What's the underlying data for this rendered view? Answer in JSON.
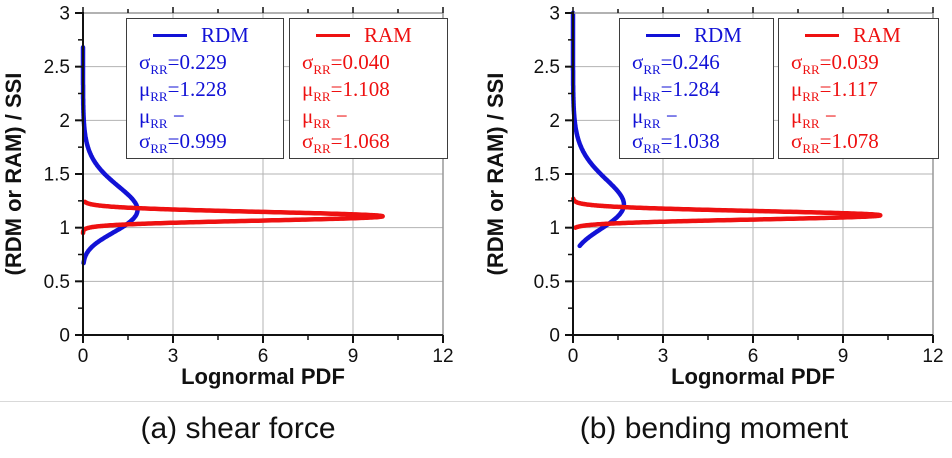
{
  "chart_data": [
    {
      "type": "line",
      "caption": "(a) shear force",
      "xlabel": "Lognormal PDF",
      "ylabel": "(RDM or RAM) / SSI",
      "xlim": [
        0,
        12
      ],
      "ylim": [
        0,
        3
      ],
      "grid": true,
      "legend_position": "top-inside",
      "xticks": {
        "major": [
          0,
          3,
          6,
          9,
          12
        ],
        "minor": [
          1.5,
          4.5,
          7.5,
          10.5
        ],
        "labels": [
          "0",
          "3",
          "6",
          "9",
          "12"
        ]
      },
      "yticks": {
        "major": [
          0,
          0.5,
          1,
          1.5,
          2,
          2.5,
          3
        ],
        "minor": [
          0.25,
          0.75,
          1.25,
          1.75,
          2.25,
          2.75
        ],
        "labels": [
          "0",
          "0.5",
          "1",
          "1.5",
          "2",
          "2.5",
          "3"
        ]
      },
      "series": [
        {
          "name": "RDM",
          "color": "#1212d6",
          "curve": "lognormal_pdf",
          "orientation": "pdf_value_on_x_axis",
          "mean_RR": 1.228,
          "std_RR": 0.229,
          "mean_minus_std_RR": 0.999,
          "peak_pdf_approx": 1.85,
          "y_range_plotted": [
            0.67,
            2.68
          ],
          "legend_stats": [
            [
              {
                "t": "σ"
              },
              {
                "t": "RR",
                "sub": true
              },
              {
                "t": "=0.229"
              }
            ],
            [
              {
                "t": "μ"
              },
              {
                "t": "RR",
                "sub": true
              },
              {
                "t": "=1.228"
              }
            ],
            [
              {
                "t": "μ"
              },
              {
                "t": "RR",
                "sub": true
              },
              {
                "t": " − σ"
              },
              {
                "t": "RR",
                "sub": true
              },
              {
                "t": "=0.999"
              }
            ]
          ]
        },
        {
          "name": "RAM",
          "color": "#ee1111",
          "curve": "lognormal_pdf",
          "orientation": "pdf_value_on_x_axis",
          "mean_RR": 1.108,
          "std_RR": 0.04,
          "mean_minus_std_RR": 1.068,
          "peak_pdf_approx": 10.0,
          "y_range_plotted": [
            0.95,
            1.24
          ],
          "legend_stats": [
            [
              {
                "t": "σ"
              },
              {
                "t": "RR",
                "sub": true
              },
              {
                "t": "=0.040"
              }
            ],
            [
              {
                "t": "μ"
              },
              {
                "t": "RR",
                "sub": true
              },
              {
                "t": "=1.108"
              }
            ],
            [
              {
                "t": "μ"
              },
              {
                "t": "RR",
                "sub": true
              },
              {
                "t": " − σ"
              },
              {
                "t": "RR",
                "sub": true
              },
              {
                "t": "=1.068"
              }
            ]
          ]
        }
      ]
    },
    {
      "type": "line",
      "caption": "(b) bending moment",
      "xlabel": "Lognormal PDF",
      "ylabel": "(RDM or RAM) / SSI",
      "xlim": [
        0,
        12
      ],
      "ylim": [
        0,
        3
      ],
      "grid": true,
      "legend_position": "top-inside",
      "xticks": {
        "major": [
          0,
          3,
          6,
          9,
          12
        ],
        "minor": [
          1.5,
          4.5,
          7.5,
          10.5
        ],
        "labels": [
          "0",
          "3",
          "6",
          "9",
          "12"
        ]
      },
      "yticks": {
        "major": [
          0,
          0.5,
          1,
          1.5,
          2,
          2.5,
          3
        ],
        "minor": [
          0.25,
          0.75,
          1.25,
          1.75,
          2.25,
          2.75
        ],
        "labels": [
          "0",
          "0.5",
          "1",
          "1.5",
          "2",
          "2.5",
          "3"
        ]
      },
      "series": [
        {
          "name": "RDM",
          "color": "#1212d6",
          "curve": "lognormal_pdf",
          "orientation": "pdf_value_on_x_axis",
          "mean_RR": 1.284,
          "std_RR": 0.246,
          "mean_minus_std_RR": 1.038,
          "peak_pdf_approx": 1.73,
          "y_range_plotted": [
            0.83,
            3.0
          ],
          "legend_stats": [
            [
              {
                "t": "σ"
              },
              {
                "t": "RR",
                "sub": true
              },
              {
                "t": "=0.246"
              }
            ],
            [
              {
                "t": "μ"
              },
              {
                "t": "RR",
                "sub": true
              },
              {
                "t": "=1.284"
              }
            ],
            [
              {
                "t": "μ"
              },
              {
                "t": "RR",
                "sub": true
              },
              {
                "t": " − σ"
              },
              {
                "t": "RR",
                "sub": true
              },
              {
                "t": "=1.038"
              }
            ]
          ]
        },
        {
          "name": "RAM",
          "color": "#ee1111",
          "curve": "lognormal_pdf",
          "orientation": "pdf_value_on_x_axis",
          "mean_RR": 1.117,
          "std_RR": 0.039,
          "mean_minus_std_RR": 1.078,
          "peak_pdf_approx": 10.3,
          "y_range_plotted": [
            1.0,
            1.27
          ],
          "legend_stats": [
            [
              {
                "t": "σ"
              },
              {
                "t": "RR",
                "sub": true
              },
              {
                "t": "=0.039"
              }
            ],
            [
              {
                "t": "μ"
              },
              {
                "t": "RR",
                "sub": true
              },
              {
                "t": "=1.117"
              }
            ],
            [
              {
                "t": "μ"
              },
              {
                "t": "RR",
                "sub": true
              },
              {
                "t": " − σ"
              },
              {
                "t": "RR",
                "sub": true
              },
              {
                "t": "=1.078"
              }
            ]
          ]
        }
      ]
    }
  ],
  "colors": {
    "grid": "#b3b3b3",
    "axis": "#111111",
    "frame_light": "#999999",
    "legend_border": "#3d3d3d",
    "background": "#ffffff",
    "divider": "#d9d9d9"
  }
}
